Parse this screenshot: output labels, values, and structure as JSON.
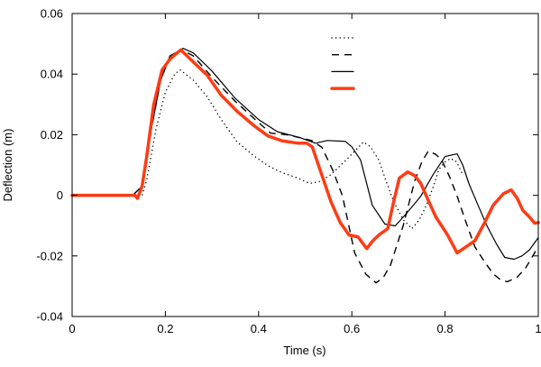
{
  "chart_data": {
    "type": "line",
    "title": "",
    "xlabel": "Time (s)",
    "ylabel": "Deflection (m)",
    "xlim": [
      0,
      1
    ],
    "ylim": [
      -0.04,
      0.06
    ],
    "xticks": [
      "0",
      "0.2",
      "0.4",
      "0.6",
      "0.8",
      "1"
    ],
    "xtick_values": [
      0,
      0.2,
      0.4,
      0.6,
      0.8,
      1
    ],
    "yticks": [
      "-0.04",
      "-0.02",
      "0",
      "0.02",
      "0.04",
      "0.06"
    ],
    "ytick_values": [
      -0.04,
      -0.02,
      0,
      0.02,
      0.04,
      0.06
    ],
    "grid": false,
    "legend": {
      "placement": "top-center",
      "labels_shown": false
    },
    "series": [
      {
        "style": "dotted",
        "color": "#000000",
        "points": [
          [
            0,
            0
          ],
          [
            0.15,
            0
          ],
          [
            0.16,
            0.005
          ],
          [
            0.18,
            0.022
          ],
          [
            0.2,
            0.034
          ],
          [
            0.22,
            0.04
          ],
          [
            0.232,
            0.0414
          ],
          [
            0.26,
            0.038
          ],
          [
            0.29,
            0.0325
          ],
          [
            0.32,
            0.025
          ],
          [
            0.354,
            0.0176
          ],
          [
            0.39,
            0.013
          ],
          [
            0.42,
            0.0098
          ],
          [
            0.45,
            0.0075
          ],
          [
            0.484,
            0.0057
          ],
          [
            0.509,
            0.0039
          ],
          [
            0.53,
            0.0045
          ],
          [
            0.555,
            0.0068
          ],
          [
            0.59,
            0.012
          ],
          [
            0.625,
            0.0176
          ],
          [
            0.64,
            0.016
          ],
          [
            0.658,
            0.0116
          ],
          [
            0.675,
            0.004
          ],
          [
            0.69,
            -0.0021
          ],
          [
            0.71,
            -0.008
          ],
          [
            0.729,
            -0.011
          ],
          [
            0.745,
            -0.008
          ],
          [
            0.76,
            -0.0033
          ],
          [
            0.775,
            0.003
          ],
          [
            0.787,
            0.0086
          ],
          [
            0.8,
            0.011
          ],
          [
            0.812,
            0.0122
          ],
          [
            0.825,
            0.011
          ],
          [
            0.838,
            0.0068
          ]
        ]
      },
      {
        "style": "dashed",
        "color": "#000000",
        "points": [
          [
            0,
            0
          ],
          [
            0.13,
            0
          ],
          [
            0.15,
            0.003
          ],
          [
            0.17,
            0.022
          ],
          [
            0.19,
            0.038
          ],
          [
            0.21,
            0.046
          ],
          [
            0.235,
            0.048
          ],
          [
            0.26,
            0.046
          ],
          [
            0.3,
            0.039
          ],
          [
            0.35,
            0.031
          ],
          [
            0.4,
            0.024
          ],
          [
            0.426,
            0.0205
          ],
          [
            0.46,
            0.02
          ],
          [
            0.49,
            0.019
          ],
          [
            0.515,
            0.018
          ],
          [
            0.536,
            0.0158
          ],
          [
            0.56,
            0.008
          ],
          [
            0.58,
            -0.0003
          ],
          [
            0.606,
            -0.019
          ],
          [
            0.63,
            -0.026
          ],
          [
            0.652,
            -0.0289
          ],
          [
            0.668,
            -0.027
          ],
          [
            0.683,
            -0.023
          ],
          [
            0.71,
            -0.0101
          ],
          [
            0.735,
            0.0048
          ],
          [
            0.75,
            0.011
          ],
          [
            0.764,
            0.0146
          ],
          [
            0.78,
            0.0135
          ],
          [
            0.793,
            0.0116
          ],
          [
            0.81,
            0.006
          ],
          [
            0.826,
            -0.0003
          ],
          [
            0.845,
            -0.009
          ],
          [
            0.864,
            -0.017
          ],
          [
            0.885,
            -0.022
          ],
          [
            0.903,
            -0.0259
          ],
          [
            0.92,
            -0.028
          ],
          [
            0.934,
            -0.0285
          ],
          [
            0.955,
            -0.027
          ],
          [
            0.973,
            -0.024
          ],
          [
            0.992,
            -0.019
          ],
          [
            1,
            -0.017
          ]
        ]
      },
      {
        "style": "solid",
        "color": "#000000",
        "points": [
          [
            0,
            0
          ],
          [
            0.13,
            0
          ],
          [
            0.15,
            0.003
          ],
          [
            0.17,
            0.022
          ],
          [
            0.19,
            0.038
          ],
          [
            0.21,
            0.046
          ],
          [
            0.238,
            0.0485
          ],
          [
            0.26,
            0.047
          ],
          [
            0.3,
            0.041
          ],
          [
            0.35,
            0.032
          ],
          [
            0.4,
            0.025
          ],
          [
            0.44,
            0.021
          ],
          [
            0.49,
            0.019
          ],
          [
            0.522,
            0.0172
          ],
          [
            0.547,
            0.0181
          ],
          [
            0.586,
            0.0178
          ],
          [
            0.6,
            0.016
          ],
          [
            0.619,
            0.0116
          ],
          [
            0.63,
            0.005
          ],
          [
            0.644,
            -0.0033
          ],
          [
            0.671,
            -0.0095
          ],
          [
            0.693,
            -0.0101
          ],
          [
            0.716,
            -0.0062
          ],
          [
            0.748,
            -0.0003
          ],
          [
            0.774,
            0.0068
          ],
          [
            0.8,
            0.0128
          ],
          [
            0.826,
            0.0137
          ],
          [
            0.838,
            0.01
          ],
          [
            0.851,
            0.0039
          ],
          [
            0.87,
            -0.003
          ],
          [
            0.89,
            -0.0101
          ],
          [
            0.91,
            -0.016
          ],
          [
            0.928,
            -0.0205
          ],
          [
            0.948,
            -0.0211
          ],
          [
            0.965,
            -0.02
          ],
          [
            0.981,
            -0.018
          ],
          [
            1,
            -0.014
          ]
        ]
      },
      {
        "style": "thick",
        "color": "#ff3b14",
        "points": [
          [
            0,
            0
          ],
          [
            0.135,
            0
          ],
          [
            0.14,
            -0.001
          ],
          [
            0.15,
            0.003
          ],
          [
            0.16,
            0.0128
          ],
          [
            0.175,
            0.03
          ],
          [
            0.193,
            0.0414
          ],
          [
            0.21,
            0.045
          ],
          [
            0.233,
            0.048
          ],
          [
            0.26,
            0.044
          ],
          [
            0.29,
            0.0396
          ],
          [
            0.32,
            0.033
          ],
          [
            0.354,
            0.0277
          ],
          [
            0.39,
            0.023
          ],
          [
            0.42,
            0.0196
          ],
          [
            0.45,
            0.018
          ],
          [
            0.484,
            0.0172
          ],
          [
            0.503,
            0.0172
          ],
          [
            0.515,
            0.016
          ],
          [
            0.535,
            0.007
          ],
          [
            0.555,
            -0.002
          ],
          [
            0.575,
            -0.009
          ],
          [
            0.594,
            -0.0131
          ],
          [
            0.613,
            -0.0137
          ],
          [
            0.632,
            -0.0176
          ],
          [
            0.645,
            -0.015
          ],
          [
            0.658,
            -0.0131
          ],
          [
            0.677,
            -0.011
          ],
          [
            0.69,
            -0.002
          ],
          [
            0.702,
            0.0057
          ],
          [
            0.72,
            0.0077
          ],
          [
            0.735,
            0.0065
          ],
          [
            0.748,
            0.0039
          ],
          [
            0.765,
            -0.002
          ],
          [
            0.78,
            -0.0071
          ],
          [
            0.805,
            -0.013
          ],
          [
            0.826,
            -0.019
          ],
          [
            0.845,
            -0.017
          ],
          [
            0.864,
            -0.015
          ],
          [
            0.885,
            -0.009
          ],
          [
            0.903,
            -0.0033
          ],
          [
            0.925,
            0.0005
          ],
          [
            0.942,
            0.0018
          ],
          [
            0.955,
            -0.001
          ],
          [
            0.967,
            -0.005
          ],
          [
            0.98,
            -0.007
          ],
          [
            0.992,
            -0.0092
          ],
          [
            1,
            -0.009
          ]
        ]
      }
    ]
  }
}
